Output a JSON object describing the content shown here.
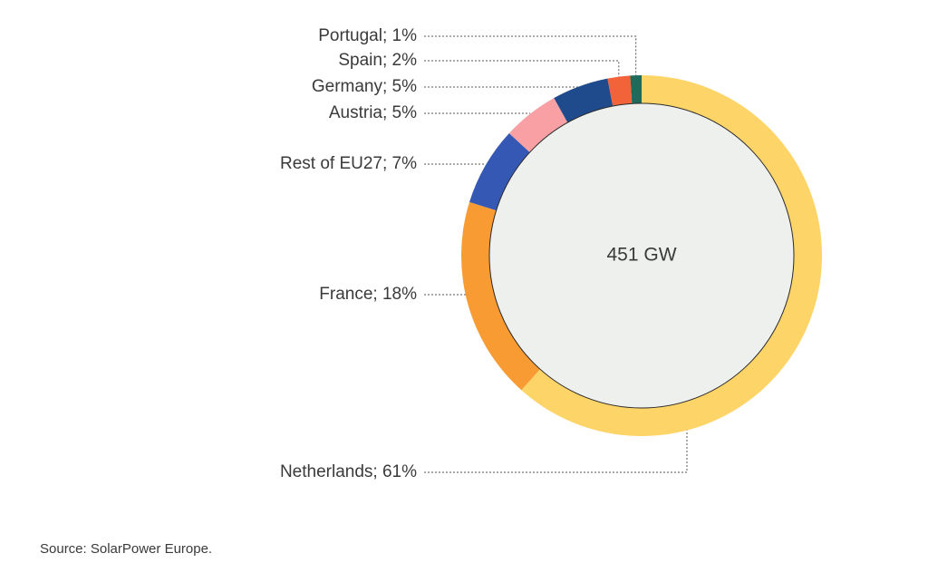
{
  "chart_data": {
    "type": "pie",
    "style": "donut",
    "center_label": "451 GW",
    "slices": [
      {
        "name": "Netherlands",
        "value": 61,
        "label": "Netherlands; 61%",
        "color": "#FDD468"
      },
      {
        "name": "France",
        "value": 18,
        "label": "France; 18%",
        "color": "#F99B33"
      },
      {
        "name": "Rest of EU27",
        "value": 7,
        "label": "Rest of EU27; 7%",
        "color": "#3458B4"
      },
      {
        "name": "Austria",
        "value": 5,
        "label": "Austria; 5%",
        "color": "#F8A0A4"
      },
      {
        "name": "Germany",
        "value": 5,
        "label": "Germany; 5%",
        "color": "#1F4B8C"
      },
      {
        "name": "Spain",
        "value": 2,
        "label": "Spain; 2%",
        "color": "#F2633A"
      },
      {
        "name": "Portugal",
        "value": 1,
        "label": "Portugal; 1%",
        "color": "#1E6B5C"
      }
    ],
    "inner_fill": "#EEF0EE",
    "leader_color": "#555555"
  },
  "source": "Source: SolarPower Europe."
}
